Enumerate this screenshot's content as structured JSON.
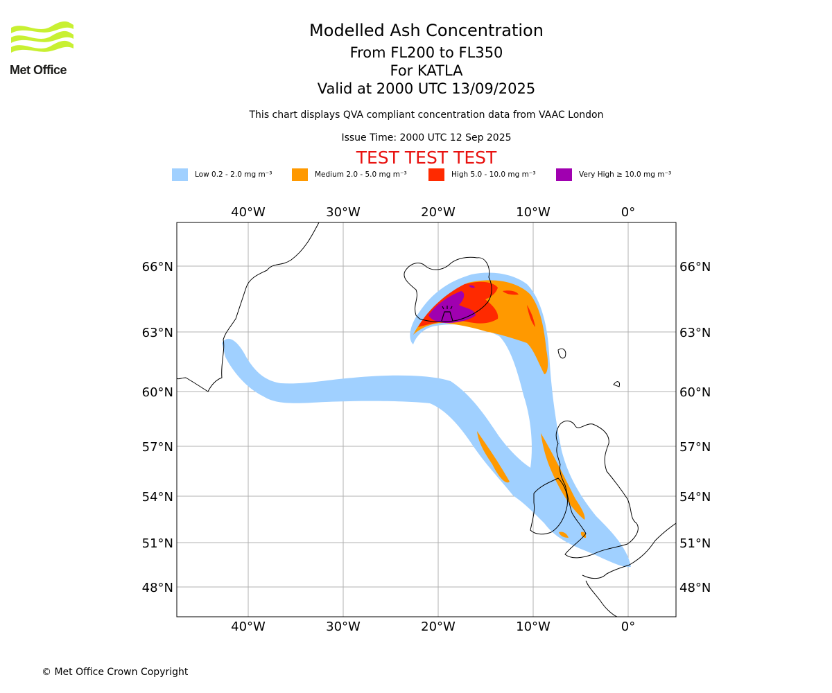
{
  "header": {
    "org_name": "Met Office",
    "title": "Modelled Ash Concentration",
    "levels": "From FL200 to FL350",
    "volcano": "For KATLA",
    "valid": "Valid at 2000 UTC 13/09/2025",
    "description": "This chart displays QVA compliant concentration data from VAAC London",
    "issue_time": "Issue Time: 2000 UTC 12 Sep 2025",
    "test_banner": "TEST TEST TEST"
  },
  "legend": [
    {
      "label": "Low 0.2 - 2.0 mg m⁻³",
      "color": "#a0d0ff"
    },
    {
      "label": "Medium 2.0 - 5.0 mg m⁻³",
      "color": "#ff9900"
    },
    {
      "label": "High 5.0 - 10.0 mg m⁻³",
      "color": "#ff2a00"
    },
    {
      "label": "Very High ≥ 10.0 mg m⁻³",
      "color": "#a000b0"
    }
  ],
  "map": {
    "lon_ticks": [
      "40°W",
      "30°W",
      "20°W",
      "10°W",
      "0°"
    ],
    "lat_ticks": [
      "66°N",
      "63°N",
      "60°N",
      "57°N",
      "54°N",
      "51°N",
      "48°N"
    ],
    "grid": true,
    "volcano_marker": "volcano-icon"
  },
  "footer": {
    "copyright": "© Met Office Crown Copyright"
  }
}
